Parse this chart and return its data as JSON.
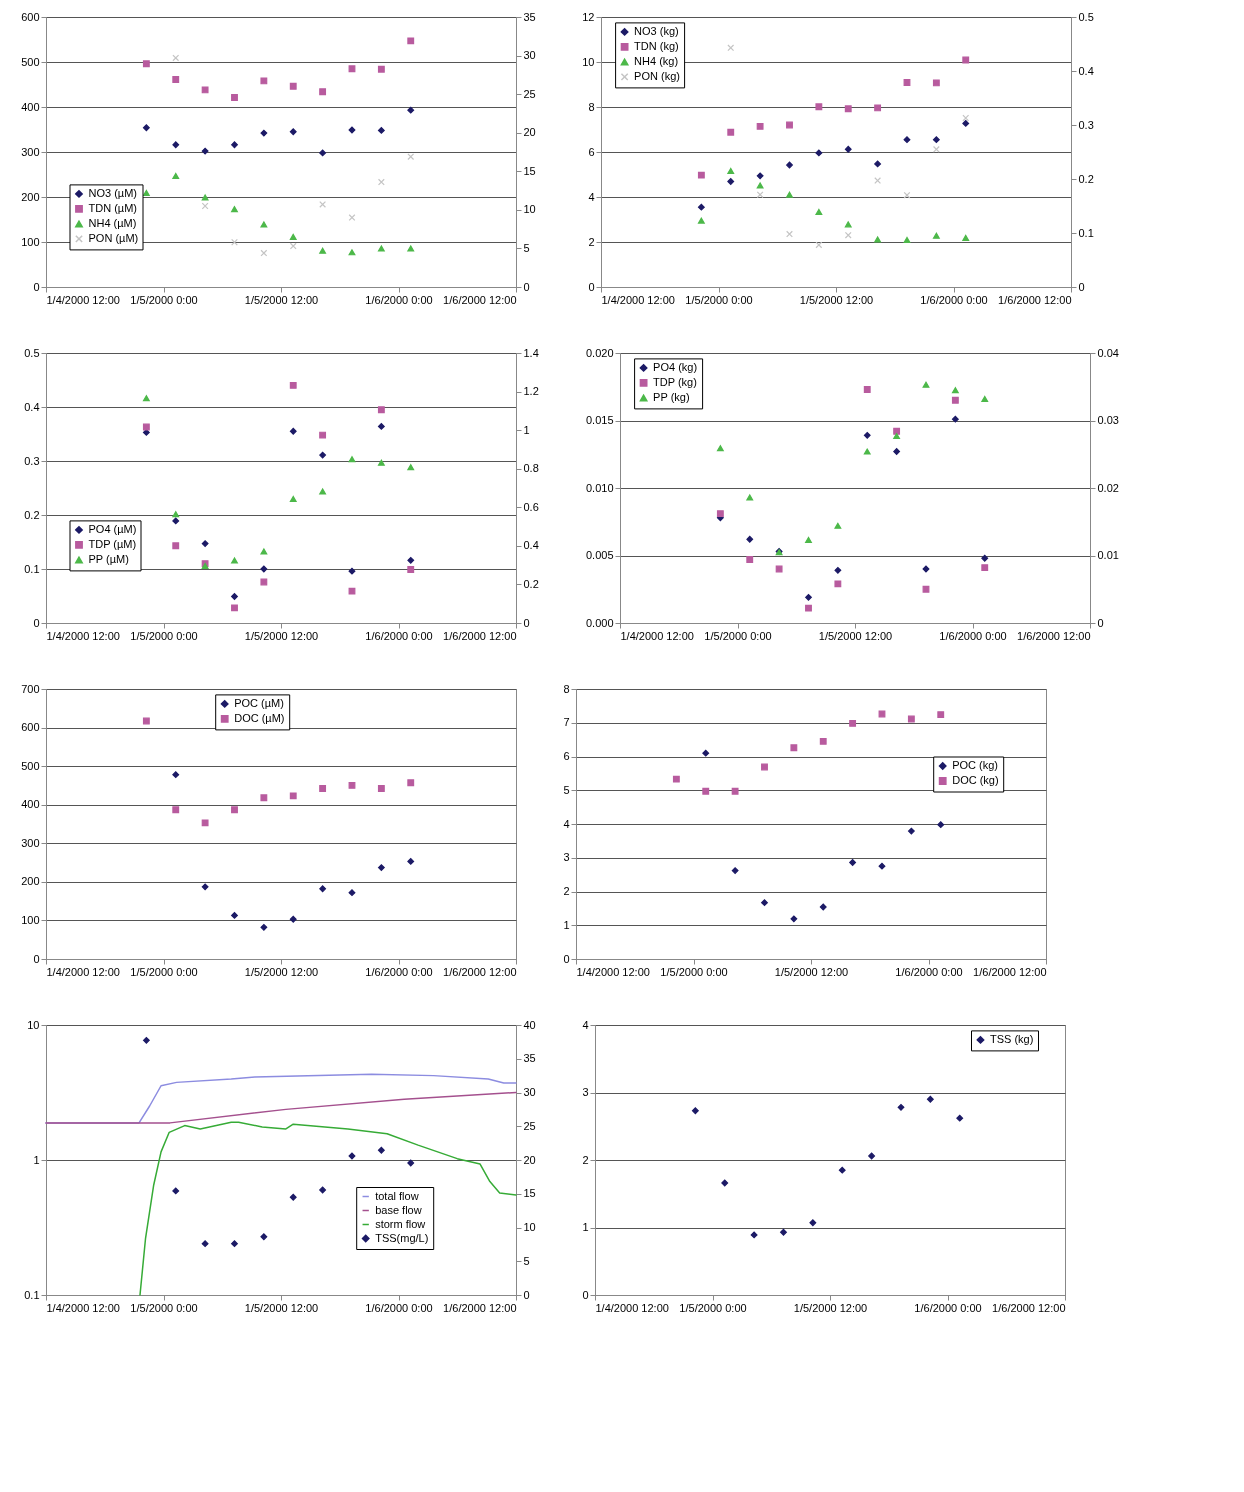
{
  "chart_data": [
    {
      "type": "scatter",
      "x": [
        "2000-01-04T22:15",
        "2000-01-05T01:15",
        "2000-01-05T04:15",
        "2000-01-05T07:15",
        "2000-01-05T10:15",
        "2000-01-05T13:15",
        "2000-01-05T16:15",
        "2000-01-05T19:15",
        "2000-01-05T22:15",
        "2000-01-06T01:15"
      ],
      "series": [
        {
          "name": "NO3 (µM)",
          "color": "#1c1a66",
          "marker": "diamond",
          "values": [
            354,
            316,
            302,
            316,
            342,
            345,
            298,
            349,
            348,
            393
          ]
        },
        {
          "name": "TDN (µM)",
          "color": "#b85b9e",
          "marker": "square",
          "values": [
            496,
            461,
            438,
            421,
            458,
            446,
            434,
            485,
            484,
            547
          ]
        },
        {
          "name": "NH4 (µM)",
          "color": "#4cb849",
          "marker": "triangle",
          "axis": "y2",
          "values": [
            12.2,
            14.4,
            11.6,
            10.1,
            8.1,
            6.5,
            4.7,
            4.5,
            5.0,
            5.0
          ]
        },
        {
          "name": "PON (µM)",
          "color": "#c4c4c4",
          "marker": "cross",
          "axis": "y2",
          "values": [
            null,
            29.7,
            10.5,
            5.8,
            4.4,
            5.3,
            10.7,
            9.0,
            13.6,
            16.9
          ]
        }
      ],
      "xlim": [
        "2000-01-04T12:00",
        "2000-01-06T12:00"
      ],
      "xticks": [
        {
          "value": "2000-01-04T12:00",
          "label": "1/4/2000 12:00"
        },
        {
          "value": "2000-01-05T00:00",
          "label": "1/5/2000 0:00"
        },
        {
          "value": "2000-01-05T12:00",
          "label": "1/5/2000 12:00"
        },
        {
          "value": "2000-01-06T00:00",
          "label": "1/6/2000 0:00"
        },
        {
          "value": "2000-01-06T12:00",
          "label": "1/6/2000 12:00"
        }
      ],
      "ylim": [
        0,
        600
      ],
      "yticks": [
        0,
        100,
        200,
        300,
        400,
        500,
        600
      ],
      "y2lim": [
        0,
        35
      ],
      "y2ticks": [
        0,
        5,
        10,
        15,
        20,
        25,
        30,
        35
      ],
      "grid": "y",
      "legend": "bottom left"
    },
    {
      "type": "scatter",
      "x": [
        "2000-01-04T22:15",
        "2000-01-05T01:15",
        "2000-01-05T04:15",
        "2000-01-05T07:15",
        "2000-01-05T10:15",
        "2000-01-05T13:15",
        "2000-01-05T16:15",
        "2000-01-05T19:15",
        "2000-01-05T22:15",
        "2000-01-06T01:15"
      ],
      "series": [
        {
          "name": "NO3 (kg)",
          "color": "#1c1a66",
          "marker": "diamond",
          "values": [
            3.55,
            4.69,
            4.94,
            5.42,
            5.96,
            6.12,
            5.47,
            6.55,
            6.55,
            7.27
          ]
        },
        {
          "name": "TDN (kg)",
          "color": "#b85b9e",
          "marker": "square",
          "values": [
            4.97,
            6.88,
            7.14,
            7.2,
            8.01,
            7.92,
            7.96,
            9.09,
            9.07,
            10.09
          ]
        },
        {
          "name": "NH4 (kg)",
          "color": "#4cb849",
          "marker": "triangle",
          "axis": "y2",
          "values": [
            0.123,
            0.215,
            0.188,
            0.171,
            0.139,
            0.116,
            0.088,
            0.087,
            0.095,
            0.091
          ]
        },
        {
          "name": "PON (kg)",
          "color": "#c4c4c4",
          "marker": "cross",
          "axis": "y2",
          "values": [
            null,
            0.443,
            0.171,
            0.098,
            0.078,
            0.096,
            0.197,
            0.17,
            0.255,
            0.313
          ]
        }
      ],
      "xlim": [
        "2000-01-04T12:00",
        "2000-01-06T12:00"
      ],
      "xticks": [
        {
          "value": "2000-01-04T12:00",
          "label": "1/4/2000 12:00"
        },
        {
          "value": "2000-01-05T00:00",
          "label": "1/5/2000 0:00"
        },
        {
          "value": "2000-01-05T12:00",
          "label": "1/5/2000 12:00"
        },
        {
          "value": "2000-01-06T00:00",
          "label": "1/6/2000 0:00"
        },
        {
          "value": "2000-01-06T12:00",
          "label": "1/6/2000 12:00"
        }
      ],
      "ylim": [
        0,
        12
      ],
      "yticks": [
        0,
        2,
        4,
        6,
        8,
        10,
        12
      ],
      "y2lim": [
        0,
        0.5
      ],
      "y2ticks": [
        0,
        0.1,
        0.2,
        0.3,
        0.4,
        0.5
      ],
      "grid": "y",
      "legend": "top left"
    },
    {
      "type": "scatter",
      "x": [
        "2000-01-04T22:15",
        "2000-01-05T01:15",
        "2000-01-05T04:15",
        "2000-01-05T07:15",
        "2000-01-05T10:15",
        "2000-01-05T13:15",
        "2000-01-05T16:15",
        "2000-01-05T19:15",
        "2000-01-05T22:15",
        "2000-01-06T01:15"
      ],
      "series": [
        {
          "name": "PO4 (µM)",
          "color": "#1c1a66",
          "marker": "diamond",
          "values": [
            0.353,
            0.189,
            0.147,
            0.049,
            0.1,
            0.355,
            0.311,
            0.096,
            0.364,
            0.116
          ]
        },
        {
          "name": "TDP (µM)",
          "color": "#b85b9e",
          "marker": "square",
          "values": [
            0.363,
            0.143,
            0.11,
            0.028,
            0.076,
            0.44,
            0.348,
            0.059,
            0.395,
            0.099
          ]
        },
        {
          "name": "PP (µM)",
          "color": "#4cb849",
          "marker": "triangle",
          "axis": "y2",
          "values": [
            1.166,
            0.564,
            0.296,
            0.324,
            0.371,
            0.643,
            0.682,
            0.849,
            0.831,
            0.808
          ]
        }
      ],
      "xlim": [
        "2000-01-04T12:00",
        "2000-01-06T12:00"
      ],
      "xticks": [
        {
          "value": "2000-01-04T12:00",
          "label": "1/4/2000 12:00"
        },
        {
          "value": "2000-01-05T00:00",
          "label": "1/5/2000 0:00"
        },
        {
          "value": "2000-01-05T12:00",
          "label": "1/5/2000 12:00"
        },
        {
          "value": "2000-01-06T00:00",
          "label": "1/6/2000 0:00"
        },
        {
          "value": "2000-01-06T12:00",
          "label": "1/6/2000 12:00"
        }
      ],
      "ylim": [
        0,
        0.5
      ],
      "yticks": [
        0,
        0.1,
        0.2,
        0.3,
        0.4,
        0.5
      ],
      "y2lim": [
        0,
        1.4
      ],
      "y2ticks": [
        0,
        0.2,
        0.4,
        0.6,
        0.8,
        1,
        1.2,
        1.4
      ],
      "grid": "y",
      "legend": "bottom left"
    },
    {
      "type": "scatter",
      "x": [
        "2000-01-04T22:15",
        "2000-01-05T01:15",
        "2000-01-05T04:15",
        "2000-01-05T07:15",
        "2000-01-05T10:15",
        "2000-01-05T13:15",
        "2000-01-05T16:15",
        "2000-01-05T19:15",
        "2000-01-05T22:15",
        "2000-01-06T01:15"
      ],
      "series": [
        {
          "name": "PO4 (kg)",
          "color": "#1c1a66",
          "marker": "diamond",
          "values": [
            0.0078,
            0.0062,
            0.0053,
            0.0019,
            0.0039,
            0.0139,
            0.0127,
            0.004,
            0.0151,
            0.0048
          ]
        },
        {
          "name": "TDP (kg)",
          "color": "#b85b9e",
          "marker": "square",
          "values": [
            0.0081,
            0.0047,
            0.004,
            0.0011,
            0.0029,
            0.0173,
            0.0142,
            0.0025,
            0.0165,
            0.0041
          ]
        },
        {
          "name": "PP (kg)",
          "color": "#4cb849",
          "marker": "triangle",
          "axis": "y2",
          "values": [
            0.0259,
            0.0186,
            0.0105,
            0.0123,
            0.0144,
            0.0254,
            0.0277,
            0.0353,
            0.0345,
            0.0332
          ]
        }
      ],
      "xlim": [
        "2000-01-04T12:00",
        "2000-01-06T12:00"
      ],
      "xticks": [
        {
          "value": "2000-01-04T12:00",
          "label": "1/4/2000 12:00"
        },
        {
          "value": "2000-01-05T00:00",
          "label": "1/5/2000 0:00"
        },
        {
          "value": "2000-01-05T12:00",
          "label": "1/5/2000 12:00"
        },
        {
          "value": "2000-01-06T00:00",
          "label": "1/6/2000 0:00"
        },
        {
          "value": "2000-01-06T12:00",
          "label": "1/6/2000 12:00"
        }
      ],
      "ylim": [
        0,
        0.02
      ],
      "yticks": [
        {
          "value": 0,
          "label": "0.000"
        },
        {
          "value": 0.005,
          "label": "0.005"
        },
        {
          "value": 0.01,
          "label": "0.010"
        },
        {
          "value": 0.015,
          "label": "0.015"
        },
        {
          "value": 0.02,
          "label": "0.020"
        }
      ],
      "y2lim": [
        0,
        0.04
      ],
      "y2ticks": [
        0,
        0.01,
        0.02,
        0.03,
        0.04
      ],
      "grid": "y",
      "legend": "top left"
    },
    {
      "type": "scatter",
      "x": [
        "2000-01-04T22:15",
        "2000-01-05T01:15",
        "2000-01-05T04:15",
        "2000-01-05T07:15",
        "2000-01-05T10:15",
        "2000-01-05T13:15",
        "2000-01-05T16:15",
        "2000-01-05T19:15",
        "2000-01-05T22:15",
        "2000-01-06T01:15"
      ],
      "series": [
        {
          "name": "POC (µM)",
          "color": "#1c1a66",
          "marker": "diamond",
          "values": [
            null,
            478,
            187,
            113,
            82,
            103,
            182,
            172,
            237,
            253
          ]
        },
        {
          "name": "DOC (µM)",
          "color": "#b85b9e",
          "marker": "square",
          "values": [
            617,
            387,
            353,
            387,
            418,
            423,
            442,
            450,
            442,
            457
          ]
        }
      ],
      "xlim": [
        "2000-01-04T12:00",
        "2000-01-06T12:00"
      ],
      "xticks": [
        {
          "value": "2000-01-04T12:00",
          "label": "1/4/2000 12:00"
        },
        {
          "value": "2000-01-05T00:00",
          "label": "1/5/2000 0:00"
        },
        {
          "value": "2000-01-05T12:00",
          "label": "1/5/2000 12:00"
        },
        {
          "value": "2000-01-06T00:00",
          "label": "1/6/2000 0:00"
        },
        {
          "value": "2000-01-06T12:00",
          "label": "1/6/2000 12:00"
        }
      ],
      "ylim": [
        0,
        700
      ],
      "yticks": [
        0,
        100,
        200,
        300,
        400,
        500,
        600,
        700
      ],
      "grid": "y",
      "legend": "top"
    },
    {
      "type": "scatter",
      "x": [
        "2000-01-04T22:15",
        "2000-01-05T01:15",
        "2000-01-05T04:15",
        "2000-01-05T07:15",
        "2000-01-05T10:15",
        "2000-01-05T13:15",
        "2000-01-05T16:15",
        "2000-01-05T19:15",
        "2000-01-05T22:15",
        "2000-01-06T01:15"
      ],
      "series": [
        {
          "name": "POC (kg)",
          "color": "#1c1a66",
          "marker": "diamond",
          "values": [
            null,
            6.1,
            2.62,
            1.67,
            1.19,
            1.54,
            2.86,
            2.75,
            3.79,
            3.98
          ]
        },
        {
          "name": "DOC (kg)",
          "color": "#b85b9e",
          "marker": "square",
          "values": [
            5.33,
            4.97,
            4.97,
            5.69,
            6.26,
            6.45,
            6.98,
            7.26,
            7.11,
            7.24
          ]
        }
      ],
      "xlim": [
        "2000-01-04T12:00",
        "2000-01-06T12:00"
      ],
      "xticks": [
        {
          "value": "2000-01-04T12:00",
          "label": "1/4/2000 12:00"
        },
        {
          "value": "2000-01-05T00:00",
          "label": "1/5/2000 0:00"
        },
        {
          "value": "2000-01-05T12:00",
          "label": "1/5/2000 12:00"
        },
        {
          "value": "2000-01-06T00:00",
          "label": "1/6/2000 0:00"
        },
        {
          "value": "2000-01-06T12:00",
          "label": "1/6/2000 12:00"
        }
      ],
      "ylim": [
        0,
        8
      ],
      "yticks": [
        0,
        1,
        2,
        3,
        4,
        5,
        6,
        7,
        8
      ],
      "grid": "y",
      "legend": "right"
    },
    {
      "type": "scatter",
      "x": [
        "2000-01-04T22:15",
        "2000-01-05T01:15",
        "2000-01-05T04:15",
        "2000-01-05T07:15",
        "2000-01-05T10:15",
        "2000-01-05T13:15",
        "2000-01-05T16:15",
        "2000-01-05T19:15",
        "2000-01-05T22:15",
        "2000-01-06T01:15"
      ],
      "series": [
        {
          "name": "total flow",
          "color": "#8c8ce0",
          "type": "line",
          "marker": "none",
          "axis": "y2",
          "x": [
            "2000-01-04T12:00",
            "2000-01-04T21:30",
            "2000-01-04T22:35",
            "2000-01-04T23:45",
            "2000-01-05T01:20",
            "2000-01-05T06:55",
            "2000-01-05T09:20",
            "2000-01-05T21:15",
            "2000-01-06T03:35",
            "2000-01-06T09:10",
            "2000-01-06T10:45",
            "2000-01-06T12:00"
          ],
          "values": [
            25.5,
            25.5,
            28.0,
            31.0,
            31.5,
            32.0,
            32.3,
            32.7,
            32.5,
            32.0,
            31.4,
            31.4
          ]
        },
        {
          "name": "base flow",
          "color": "#a4508e",
          "type": "line",
          "marker": "none",
          "axis": "y2",
          "x": [
            "2000-01-04T12:00",
            "2000-01-05T00:40",
            "2000-01-05T12:30",
            "2000-01-06T00:35",
            "2000-01-06T12:00"
          ],
          "values": [
            25.5,
            25.5,
            27.5,
            29.0,
            30.0
          ]
        },
        {
          "name": "storm flow",
          "color": "#36ab36",
          "type": "line",
          "marker": "none",
          "axis": "y2",
          "x": [
            "2000-01-04T21:36",
            "2000-01-04T22:10",
            "2000-01-04T23:00",
            "2000-01-04T23:45",
            "2000-01-05T00:35",
            "2000-01-05T02:10",
            "2000-01-05T03:45",
            "2000-01-05T06:55",
            "2000-01-05T07:40",
            "2000-01-05T10:05",
            "2000-01-05T12:30",
            "2000-01-05T13:15",
            "2000-01-05T18:50",
            "2000-01-05T22:50",
            "2000-01-06T02:00",
            "2000-01-06T06:00",
            "2000-01-06T08:20",
            "2000-01-06T09:20",
            "2000-01-06T10:20",
            "2000-01-06T12:00"
          ],
          "values": [
            0,
            8.4,
            16.3,
            21.2,
            24.1,
            25.1,
            24.6,
            25.6,
            25.6,
            24.9,
            24.6,
            25.3,
            24.6,
            23.9,
            22.2,
            20.2,
            19.4,
            16.8,
            15.1,
            14.8
          ]
        },
        {
          "name": "TSS(mg/L)",
          "color": "#1c1a66",
          "marker": "diamond",
          "values": [
            7.7,
            0.59,
            0.24,
            0.24,
            0.27,
            0.53,
            0.6,
            1.07,
            1.18,
            0.95
          ]
        }
      ],
      "xlim": [
        "2000-01-04T12:00",
        "2000-01-06T12:00"
      ],
      "xticks": [
        {
          "value": "2000-01-04T12:00",
          "label": "1/4/2000 12:00"
        },
        {
          "value": "2000-01-05T00:00",
          "label": "1/5/2000 0:00"
        },
        {
          "value": "2000-01-05T12:00",
          "label": "1/5/2000 12:00"
        },
        {
          "value": "2000-01-06T00:00",
          "label": "1/6/2000 0:00"
        },
        {
          "value": "2000-01-06T12:00",
          "label": "1/6/2000 12:00"
        }
      ],
      "ylim": [
        0.1,
        10
      ],
      "yticks": [
        0.1,
        1,
        10
      ],
      "log": "y",
      "y2lim": [
        0,
        40
      ],
      "y2ticks": [
        0,
        5,
        10,
        15,
        20,
        25,
        30,
        35,
        40
      ],
      "grid": "y",
      "legend": "bottom right"
    },
    {
      "type": "scatter",
      "x": [
        "2000-01-04T22:15",
        "2000-01-05T01:15",
        "2000-01-05T04:15",
        "2000-01-05T07:15",
        "2000-01-05T10:15",
        "2000-01-05T13:15",
        "2000-01-05T16:15",
        "2000-01-05T19:15",
        "2000-01-05T22:15",
        "2000-01-06T01:15"
      ],
      "series": [
        {
          "name": "TSS (kg)",
          "color": "#1c1a66",
          "marker": "diamond",
          "values": [
            2.73,
            1.66,
            0.89,
            0.93,
            1.07,
            1.85,
            2.06,
            2.78,
            2.9,
            2.62
          ]
        }
      ],
      "xlim": [
        "2000-01-04T12:00",
        "2000-01-06T12:00"
      ],
      "xticks": [
        {
          "value": "2000-01-04T12:00",
          "label": "1/4/2000 12:00"
        },
        {
          "value": "2000-01-05T00:00",
          "label": "1/5/2000 0:00"
        },
        {
          "value": "2000-01-05T12:00",
          "label": "1/5/2000 12:00"
        },
        {
          "value": "2000-01-06T00:00",
          "label": "1/6/2000 0:00"
        },
        {
          "value": "2000-01-06T12:00",
          "label": "1/6/2000 12:00"
        }
      ],
      "ylim": [
        0,
        4
      ],
      "yticks": [
        0,
        1,
        2,
        3,
        4
      ],
      "grid": "y",
      "legend": "top right"
    }
  ]
}
